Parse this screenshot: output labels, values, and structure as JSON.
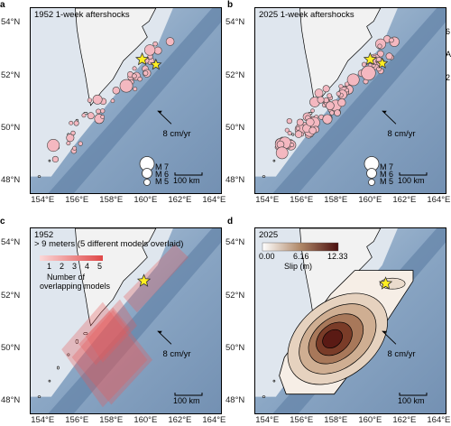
{
  "panels": [
    {
      "id": "a",
      "title": "1952 1-week aftershocks"
    },
    {
      "id": "b",
      "title": "2025 1-week aftershocks"
    },
    {
      "id": "c",
      "title": "1952",
      "subtitle": "> 9 meters (5 different models overlaid)"
    },
    {
      "id": "d",
      "title": "2025"
    }
  ],
  "axes": {
    "lat_ticks": [
      "54°N",
      "52°N",
      "50°N",
      "48°N"
    ],
    "lon_ticks": [
      "154°E",
      "156°E",
      "158°E",
      "160°E",
      "162°E",
      "164°E"
    ]
  },
  "annotations": {
    "plate_rate": "8 cm/yr",
    "scale_bar": "100 km"
  },
  "magnitude_legend": [
    "M 7",
    "M 6",
    "M 5"
  ],
  "overlap_legend": {
    "ticks": [
      "1",
      "2",
      "3",
      "4",
      "5"
    ],
    "label_line1": "Number of",
    "label_line2": "overlapping models"
  },
  "slip_legend": {
    "ticks": [
      "0.00",
      "6.16",
      "12.33"
    ],
    "label": "Slip (m)"
  },
  "right_edge_fragments": [
    "6",
    "A",
    "2"
  ],
  "colors": {
    "ocean": "#7f9cbc",
    "land": "#efefef",
    "aftershock_fill": "#f4b8c0",
    "epicenter": "#ffee22",
    "overlap_high": "#e65a5a"
  }
}
